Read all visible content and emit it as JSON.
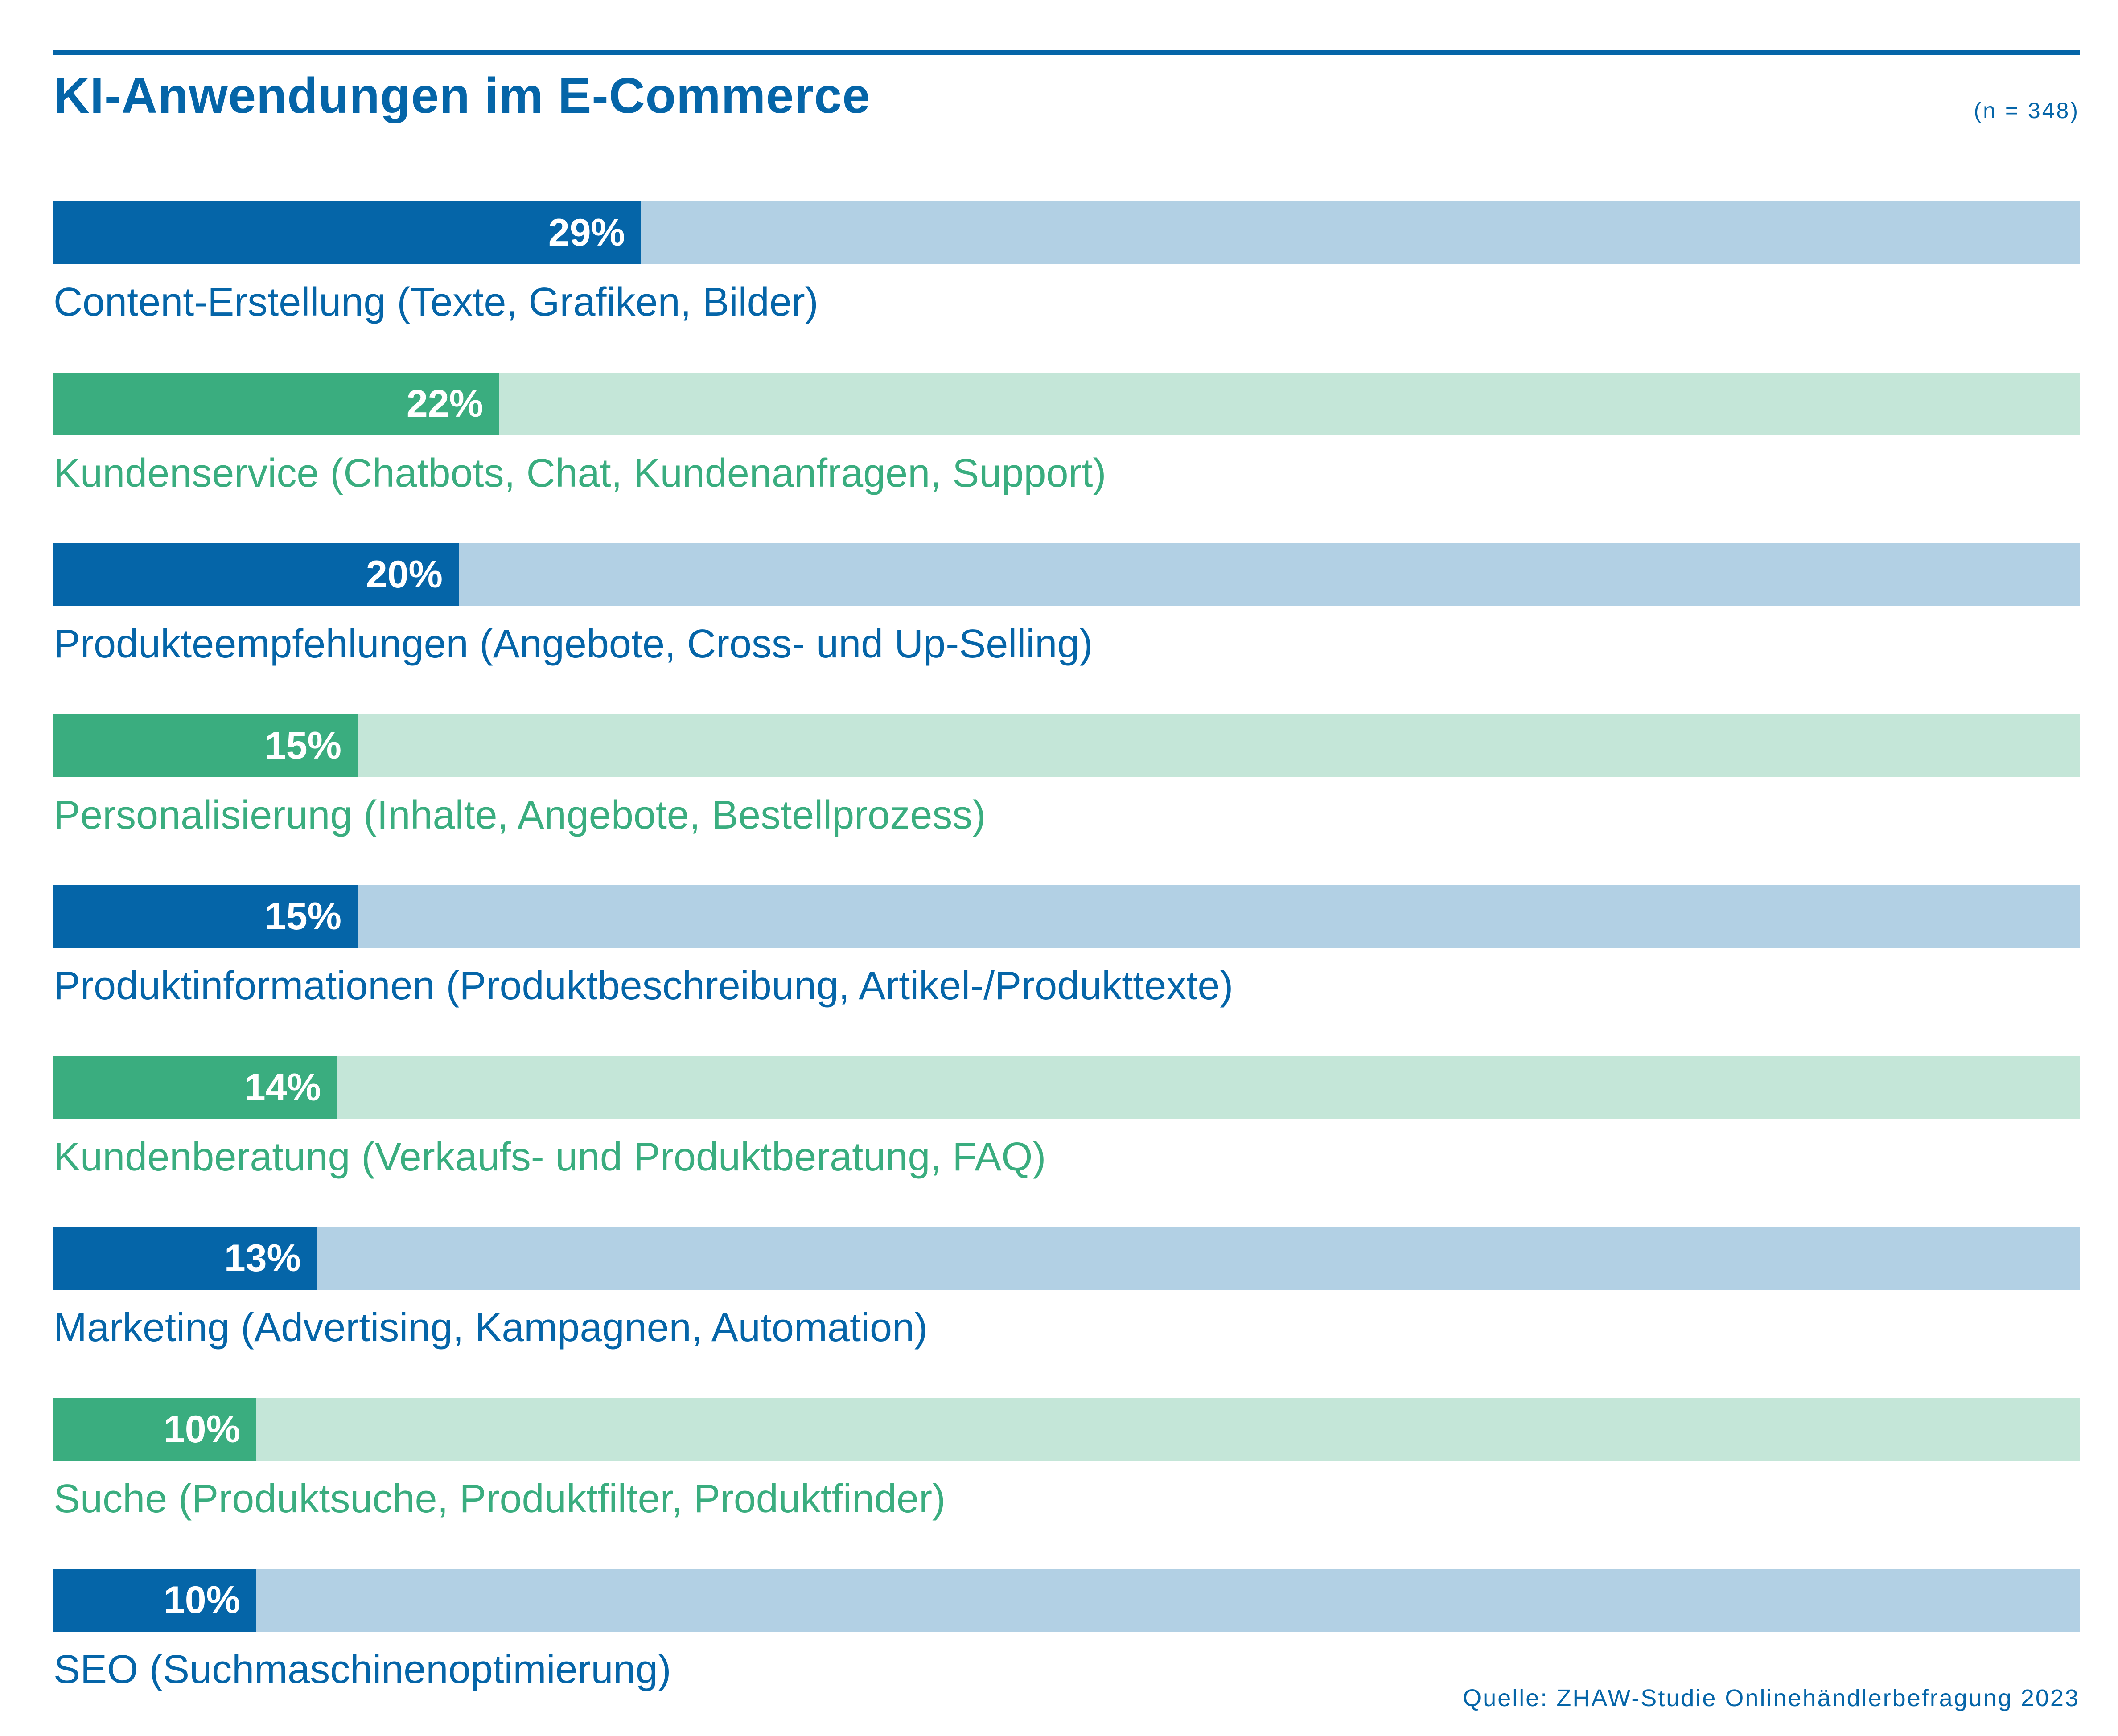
{
  "header": {
    "title": "KI-Anwendungen im E-Commerce",
    "sample": "(n = 348)"
  },
  "footer": {
    "source": "Quelle: ZHAW-Studie Onlinehändlerbefragung 2023"
  },
  "colors": {
    "blue": "#0565a8",
    "blue_light": "#b2d0e4",
    "green": "#3aad7f",
    "green_light": "#c4e6d8"
  },
  "chart_data": {
    "type": "bar",
    "orientation": "horizontal",
    "title": "KI-Anwendungen im E-Commerce",
    "xlim": [
      0,
      100
    ],
    "unit": "%",
    "grid": false,
    "categories": [
      "Content-Erstellung (Texte, Grafiken, Bilder)",
      "Kundenservice (Chatbots, Chat, Kundenanfragen, Support)",
      "Produkteempfehlungen (Angebote, Cross- und Up-Selling)",
      "Personalisierung (Inhalte, Angebote, Bestellprozess)",
      "Produktinformationen (Produktbeschreibung, Artikel-/Produkttexte)",
      "Kundenberatung (Verkaufs- und Produktberatung, FAQ)",
      "Marketing (Advertising, Kampagnen, Automation)",
      "Suche (Produktsuche, Produktfilter, Produktfinder)",
      "SEO (Suchmaschinenoptimierung)"
    ],
    "values": [
      29,
      22,
      20,
      15,
      15,
      14,
      13,
      10,
      10
    ],
    "value_labels": [
      "29%",
      "22%",
      "20%",
      "15%",
      "15%",
      "14%",
      "13%",
      "10%",
      "10%"
    ],
    "bar_colors": [
      "blue",
      "green",
      "blue",
      "green",
      "blue",
      "green",
      "blue",
      "green",
      "blue"
    ]
  }
}
